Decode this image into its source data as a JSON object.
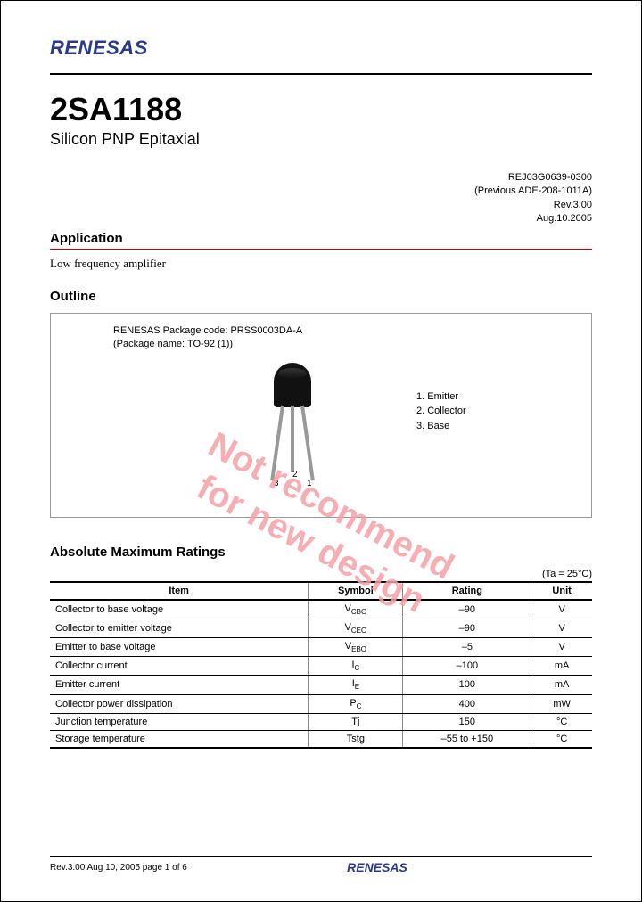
{
  "company": "RENESAS",
  "partNumber": "2SA1188",
  "subtitle": "Silicon PNP Epitaxial",
  "docInfo": {
    "code": "REJ03G0639-0300",
    "previous": "(Previous ADE-208-1011A)",
    "rev": "Rev.3.00",
    "date": "Aug.10.2005"
  },
  "sections": {
    "application": "Application",
    "appText": "Low frequency amplifier",
    "outline": "Outline",
    "ratings": "Absolute Maximum Ratings"
  },
  "package": {
    "line1": "RENESAS Package code: PRSS0003DA-A",
    "line2": "(Package name: TO-92 (1))",
    "pins": {
      "p1": "1. Emitter",
      "p2": "2. Collector",
      "p3": "3. Base"
    },
    "nums": {
      "n1": "1",
      "n2": "2",
      "n3": "3"
    }
  },
  "watermark": {
    "line1": "Not recommend",
    "line2": "for new design"
  },
  "taNote": "(Ta = 25°C)",
  "table": {
    "headers": [
      "Item",
      "Symbol",
      "Rating",
      "Unit"
    ],
    "rows": [
      {
        "item": "Collector to base voltage",
        "sym": "V",
        "sub": "CBO",
        "rating": "–90",
        "unit": "V"
      },
      {
        "item": "Collector to emitter voltage",
        "sym": "V",
        "sub": "CEO",
        "rating": "–90",
        "unit": "V"
      },
      {
        "item": "Emitter to base voltage",
        "sym": "V",
        "sub": "EBO",
        "rating": "–5",
        "unit": "V"
      },
      {
        "item": "Collector current",
        "sym": "I",
        "sub": "C",
        "rating": "–100",
        "unit": "mA"
      },
      {
        "item": "Emitter current",
        "sym": "I",
        "sub": "E",
        "rating": "100",
        "unit": "mA"
      },
      {
        "item": "Collector power dissipation",
        "sym": "P",
        "sub": "C",
        "rating": "400",
        "unit": "mW"
      },
      {
        "item": "Junction temperature",
        "sym": "Tj",
        "sub": "",
        "rating": "150",
        "unit": "°C"
      },
      {
        "item": "Storage temperature",
        "sym": "Tstg",
        "sub": "",
        "rating": "–55 to +150",
        "unit": "°C"
      }
    ]
  },
  "footer": {
    "left": "Rev.3.00  Aug 10, 2005  page 1 of 6"
  },
  "colors": {
    "brand": "#2b3890",
    "accent": "#c00",
    "watermark": "#f5a0a5"
  }
}
